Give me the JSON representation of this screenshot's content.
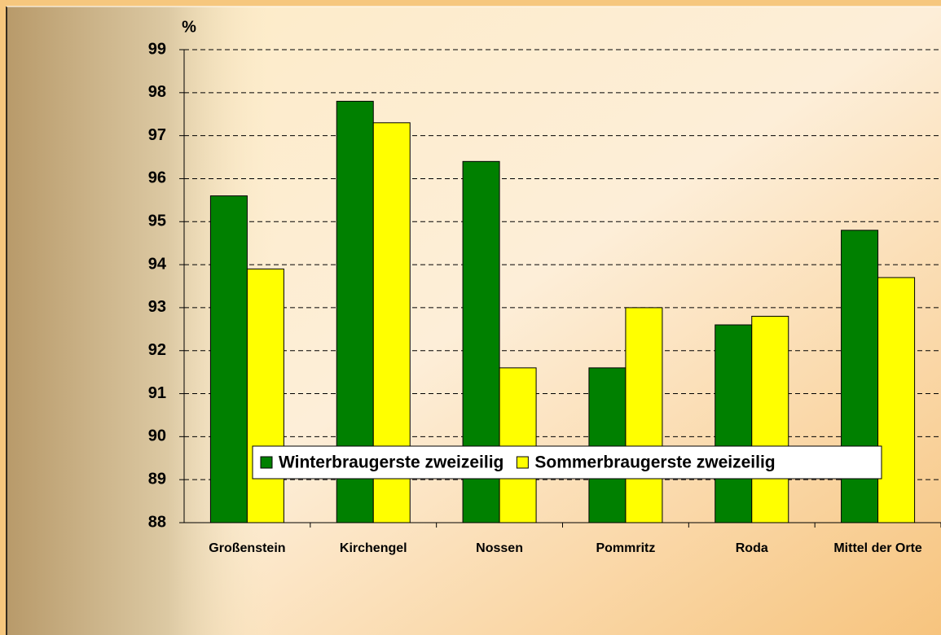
{
  "chart_data": {
    "type": "bar",
    "y_label": "%",
    "categories": [
      "Großenstein",
      "Kirchengel",
      "Nossen",
      "Pommritz",
      "Roda",
      "Mittel der Orte"
    ],
    "series": [
      {
        "name": "Winterbraugerste zweizeilig",
        "color": "#008000",
        "values": [
          95.6,
          97.8,
          96.4,
          91.6,
          92.6,
          94.8
        ]
      },
      {
        "name": "Sommerbraugerste zweizeilig",
        "color": "#ffff00",
        "values": [
          93.9,
          97.3,
          91.6,
          93.0,
          92.8,
          93.7
        ]
      }
    ],
    "ylim": [
      88,
      99
    ],
    "yticks": [
      88,
      89,
      90,
      91,
      92,
      93,
      94,
      95,
      96,
      97,
      98,
      99
    ],
    "grid": true,
    "legend_position": "bottom"
  }
}
